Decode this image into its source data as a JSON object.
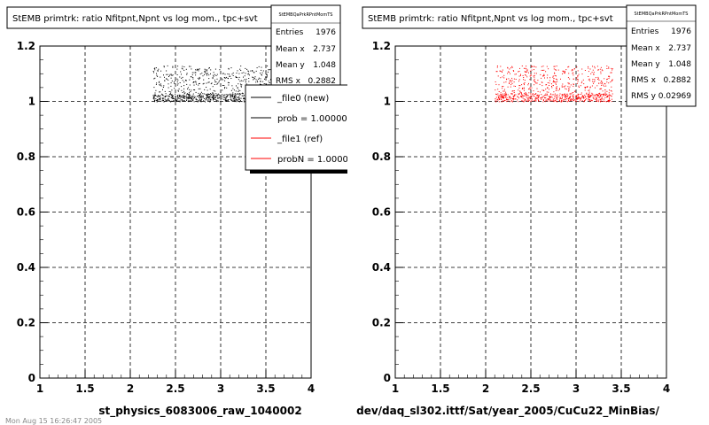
{
  "panels": [
    {
      "title": "StEMB primtrk: ratio Nfitpnt,Npnt vs log mom., tpc+svt",
      "xlabel": "st_physics_6083006_raw_1040002",
      "stats": {
        "name": "StEMBQaPrkRPntMomTS",
        "rows": [
          {
            "label": "Entries",
            "value": "1976"
          },
          {
            "label": "Mean x",
            "value": "2.737"
          },
          {
            "label": "Mean y",
            "value": "1.048"
          },
          {
            "label": "RMS x",
            "value": "0.2882"
          }
        ]
      },
      "legend": [
        {
          "text": "_file0 (new)",
          "color": "#000000"
        },
        {
          "text": "prob = 1.000000",
          "color": "#000000"
        },
        {
          "text": "_file1 (ref)",
          "color": "#ff0000"
        },
        {
          "text": "probN = 1.000000",
          "color": "#ff0000"
        }
      ]
    },
    {
      "title": "StEMB primtrk: ratio Nfitpnt,Npnt vs log mom., tpc+svt",
      "xlabel": "dev/daq_sl302.ittf/Sat/year_2005/CuCu22_MinBias/",
      "stats": {
        "name": "StEMBQaPrkRPntMomTS",
        "rows": [
          {
            "label": "Entries",
            "value": "1976"
          },
          {
            "label": "Mean x",
            "value": "2.737"
          },
          {
            "label": "Mean y",
            "value": "1.048"
          },
          {
            "label": "RMS x",
            "value": "0.2882"
          },
          {
            "label": "RMS y",
            "value": "0.02969"
          }
        ]
      }
    }
  ],
  "footer": "Mon Aug 15 16:26:47 2005",
  "chart_data": [
    {
      "type": "scatter",
      "title": "StEMB primtrk: ratio Nfitpnt,Npnt vs log mom., tpc+svt",
      "xlabel": "st_physics_6083006_raw_1040002",
      "ylabel": "",
      "xlim": [
        1,
        4
      ],
      "ylim": [
        0,
        1.2
      ],
      "xticks": [
        "1",
        "1.5",
        "2",
        "2.5",
        "3",
        "3.5",
        "4"
      ],
      "yticks": [
        "0",
        "0.2",
        "0.4",
        "0.6",
        "0.8",
        "1",
        "1.2"
      ],
      "grid": true,
      "series": [
        {
          "name": "_file0 (new)",
          "color": "#000000",
          "entries": 1976,
          "x_range": [
            2.25,
            3.55
          ],
          "y_range": [
            1.0,
            1.13
          ],
          "mean_x": 2.737,
          "mean_y": 1.048
        }
      ]
    },
    {
      "type": "scatter",
      "title": "StEMB primtrk: ratio Nfitpnt,Npnt vs log mom., tpc+svt",
      "xlabel": "dev/daq_sl302.ittf/Sat/year_2005/CuCu22_MinBias/",
      "ylabel": "",
      "xlim": [
        1,
        4
      ],
      "ylim": [
        0,
        1.2
      ],
      "xticks": [
        "1",
        "1.5",
        "2",
        "2.5",
        "3",
        "3.5",
        "4"
      ],
      "yticks": [
        "0",
        "0.2",
        "0.4",
        "0.6",
        "0.8",
        "1",
        "1.2"
      ],
      "grid": true,
      "series": [
        {
          "name": "_file1 (ref)",
          "color": "#ff0000",
          "entries": 1976,
          "x_range": [
            2.1,
            3.4
          ],
          "y_range": [
            1.0,
            1.13
          ],
          "mean_x": 2.737,
          "mean_y": 1.048
        }
      ]
    }
  ]
}
